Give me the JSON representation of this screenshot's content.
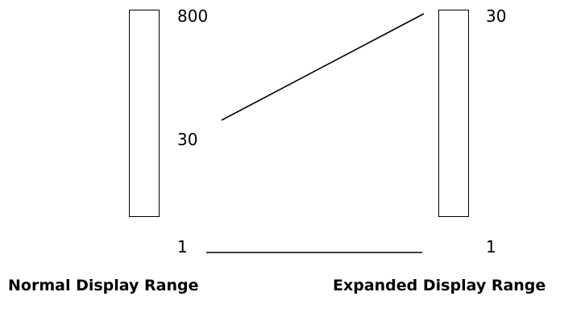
{
  "normal_range": {
    "caption": "Normal Display Range",
    "labels": {
      "top": "800",
      "middle": "30",
      "bottom": "1"
    }
  },
  "expanded_range": {
    "caption": "Expanded Display Range",
    "labels": {
      "top": "30",
      "bottom": "1"
    }
  },
  "colors": {
    "line": "#000000",
    "background": "#ffffff"
  }
}
